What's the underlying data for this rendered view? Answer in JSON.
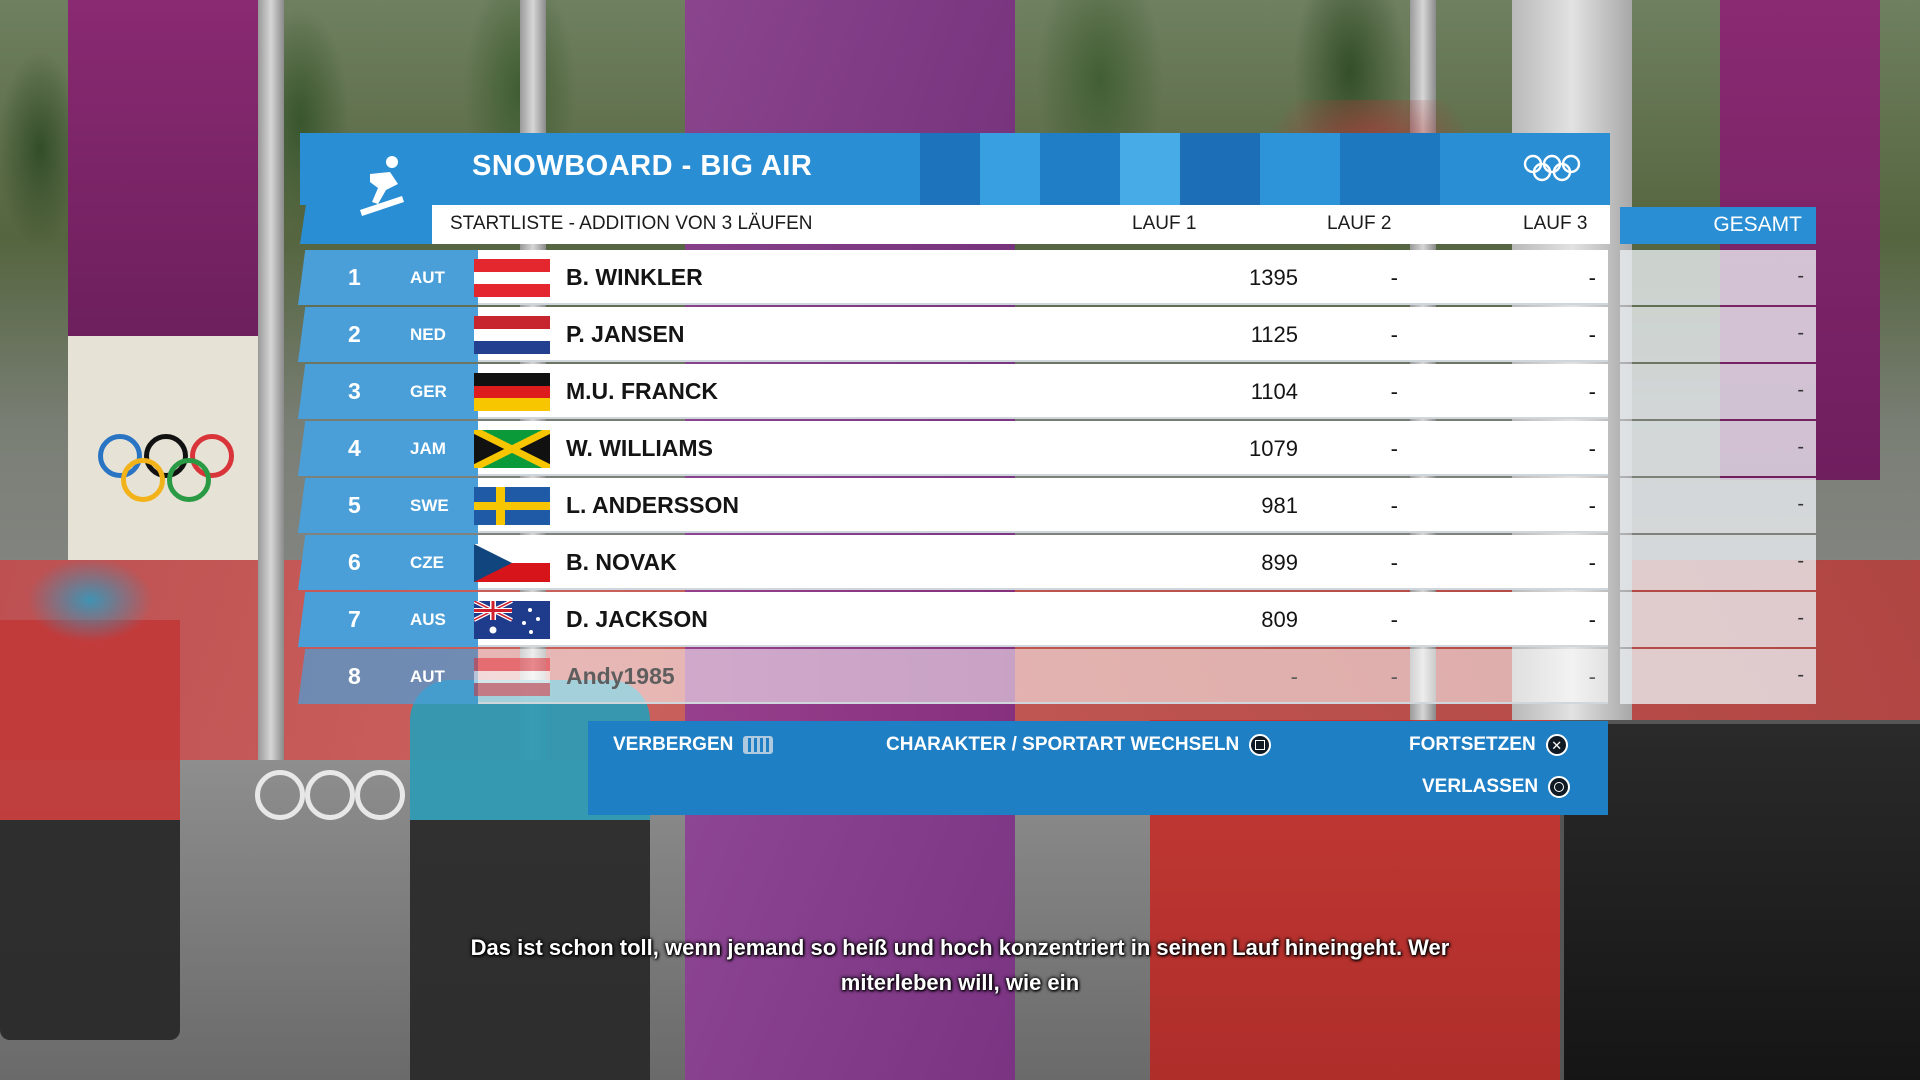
{
  "header": {
    "title": "SNOWBOARD - BIG AIR",
    "subtitle": "STARTLISTE - ADDITION VON 3 LÄUFEN",
    "columns": {
      "lauf1": "LAUF 1",
      "lauf2": "LAUF 2",
      "lauf3": "LAUF 3",
      "gesamt": "GESAMT"
    }
  },
  "icons": {
    "sport": "snowboard-icon",
    "olympics": "olympic-rings-icon"
  },
  "colors": {
    "accent": "#2a8ed4",
    "rank_box": "#4a9fd8",
    "action_bar": "#1e7fc4"
  },
  "rows": [
    {
      "rank": "1",
      "nat": "AUT",
      "flag": "austria",
      "name": "B. WINKLER",
      "lauf1": "1395",
      "lauf2": "-",
      "lauf3": "-",
      "gesamt": "-"
    },
    {
      "rank": "2",
      "nat": "NED",
      "flag": "netherlands",
      "name": "P. JANSEN",
      "lauf1": "1125",
      "lauf2": "-",
      "lauf3": "-",
      "gesamt": "-"
    },
    {
      "rank": "3",
      "nat": "GER",
      "flag": "germany",
      "name": "M.U. FRANCK",
      "lauf1": "1104",
      "lauf2": "-",
      "lauf3": "-",
      "gesamt": "-"
    },
    {
      "rank": "4",
      "nat": "JAM",
      "flag": "jamaica",
      "name": "W. WILLIAMS",
      "lauf1": "1079",
      "lauf2": "-",
      "lauf3": "-",
      "gesamt": "-"
    },
    {
      "rank": "5",
      "nat": "SWE",
      "flag": "sweden",
      "name": "L. ANDERSSON",
      "lauf1": "981",
      "lauf2": "-",
      "lauf3": "-",
      "gesamt": "-"
    },
    {
      "rank": "6",
      "nat": "CZE",
      "flag": "czechia",
      "name": "B. NOVAK",
      "lauf1": "899",
      "lauf2": "-",
      "lauf3": "-",
      "gesamt": "-"
    },
    {
      "rank": "7",
      "nat": "AUS",
      "flag": "australia",
      "name": "D. JACKSON",
      "lauf1": "809",
      "lauf2": "-",
      "lauf3": "-",
      "gesamt": "-"
    },
    {
      "rank": "8",
      "nat": "AUT",
      "flag": "austria",
      "name": "Andy1985",
      "lauf1": "-",
      "lauf2": "-",
      "lauf3": "-",
      "gesamt": "-"
    }
  ],
  "actions": {
    "hide": "VERBERGEN",
    "switch": "CHARAKTER / SPORTART WECHSELN",
    "continue": "FORTSETZEN",
    "leave": "VERLASSEN"
  },
  "action_icons": {
    "hide": "keyboard-icon",
    "switch": "square-button-icon",
    "continue": "cross-button-icon",
    "leave": "circle-button-icon"
  },
  "subtitle": {
    "line1": "Das ist schon toll, wenn jemand so heiß und hoch konzentriert in seinen Lauf hineingeht. Wer",
    "line2": "miterleben will, wie ein"
  }
}
